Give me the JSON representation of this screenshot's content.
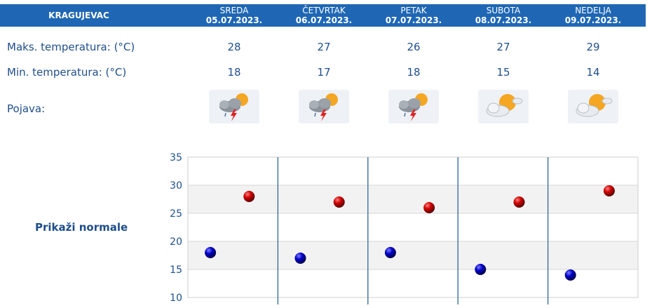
{
  "header": {
    "city": "KRAGUJEVAC",
    "days": [
      {
        "name": "SREDA",
        "date": "05.07.2023."
      },
      {
        "name": "ČETVRTAK",
        "date": "06.07.2023."
      },
      {
        "name": "PETAK",
        "date": "07.07.2023."
      },
      {
        "name": "SUBOTA",
        "date": "08.07.2023."
      },
      {
        "name": "NEDELJA",
        "date": "09.07.2023."
      }
    ]
  },
  "rows": {
    "max_label": "Maks. temperatura: (°C)",
    "min_label": "Min. temperatura: (°C)",
    "phenomenon_label": "Pojava:",
    "max": [
      "28",
      "27",
      "26",
      "27",
      "29"
    ],
    "min": [
      "18",
      "17",
      "18",
      "15",
      "14"
    ]
  },
  "icons": [
    "thunderstorm-icon",
    "thunderstorm-icon",
    "thunderstorm-icon",
    "partly-cloudy-icon",
    "partly-cloudy-icon"
  ],
  "show_normals": "Prikaži normale",
  "chart_data": {
    "type": "scatter",
    "y_ticks": [
      "35",
      "30",
      "25",
      "20",
      "15",
      "10"
    ],
    "ylim": [
      10,
      35
    ],
    "categories": [
      "05.07.2023.",
      "06.07.2023.",
      "07.07.2023.",
      "08.07.2023.",
      "09.07.2023."
    ],
    "series": [
      {
        "values": [
          28,
          27,
          26,
          27,
          29
        ],
        "color": "#cc0000"
      },
      {
        "values": [
          18,
          17,
          18,
          15,
          14
        ],
        "color": "#0000bb"
      }
    ],
    "grid": true
  }
}
